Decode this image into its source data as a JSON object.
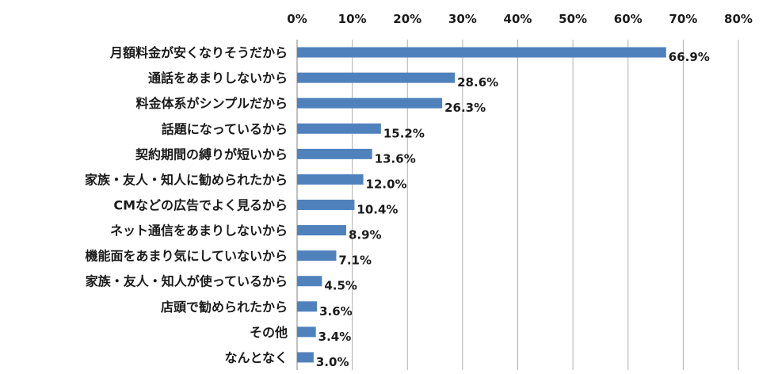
{
  "chart_data": {
    "type": "bar",
    "orientation": "horizontal",
    "x_axis_position": "top",
    "grid": true,
    "xlim": [
      0,
      80
    ],
    "xticks": [
      "0%",
      "10%",
      "20%",
      "30%",
      "40%",
      "50%",
      "60%",
      "70%",
      "80%"
    ],
    "categories": [
      "月額料金が安くなりそうだから",
      "通話をあまりしないから",
      "料金体系がシンプルだから",
      "話題になっているから",
      "契約期間の縛りが短いから",
      "家族・友人・知人に勧められたから",
      "CMなどの広告でよく見るから",
      "ネット通信をあまりしないから",
      "機能面をあまり気にしていないから",
      "家族・友人・知人が使っているから",
      "店頭で勧められたから",
      "その他",
      "なんとなく"
    ],
    "values": [
      66.9,
      28.6,
      26.3,
      15.2,
      13.6,
      12.0,
      10.4,
      8.9,
      7.1,
      4.5,
      3.6,
      3.4,
      3.0
    ],
    "value_labels": [
      "66.9%",
      "28.6%",
      "26.3%",
      "15.2%",
      "13.6%",
      "12.0%",
      "10.4%",
      "8.9%",
      "7.1%",
      "4.5%",
      "3.6%",
      "3.4%",
      "3.0%"
    ],
    "bar_color": "#4f81bd",
    "grid_color": "#b0b0b0"
  }
}
